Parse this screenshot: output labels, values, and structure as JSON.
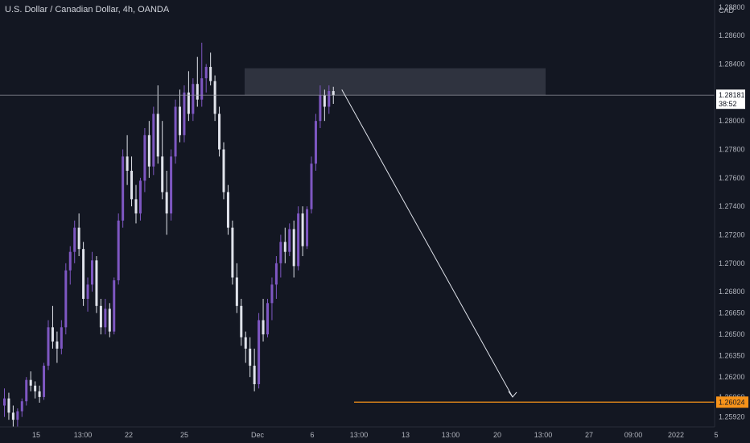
{
  "header": {
    "title": "U.S. Dollar / Canadian Dollar, 4h, OANDA"
  },
  "colors": {
    "background": "#131722",
    "up_candle": "#7e57c2",
    "down_candle": "#e0e3eb",
    "zone": "#3a3e4a",
    "crosshair": "#9598a1",
    "target_line": "#f7931a",
    "arrow": "#e0e3eb",
    "last_price_bg": "#ffffff",
    "last_price_text": "#131722",
    "target_price_bg": "#f7931a",
    "target_price_text": "#131722"
  },
  "chart_data": {
    "type": "candlestick",
    "symbol": "USDCAD",
    "interval": "4h",
    "source": "OANDA",
    "price_axis": {
      "currency": "CAD",
      "ticks": [
        "1.28800",
        "1.28600",
        "1.28400",
        "1.28000",
        "1.27800",
        "1.27600",
        "1.27400",
        "1.27200",
        "1.27000",
        "1.26800",
        "1.26650",
        "1.26500",
        "1.26350",
        "1.26200",
        "1.26060",
        "1.25920"
      ],
      "ylim": [
        1.2585,
        1.2885
      ]
    },
    "time_axis": {
      "ticks": [
        "15",
        "13:00",
        "22",
        "25",
        "Dec",
        "6",
        "13:00",
        "13",
        "13:00",
        "20",
        "13:00",
        "27",
        "09:00",
        "2022",
        "5"
      ]
    },
    "last_price": {
      "value": "1.28181",
      "countdown": "38:52"
    },
    "target_price": {
      "value": "1.26024"
    },
    "resistance_zone": {
      "top": 1.2837,
      "bottom": 1.2818
    },
    "candles": [
      [
        1.26,
        1.2612,
        1.2592,
        1.2605
      ],
      [
        1.2605,
        1.2609,
        1.259,
        1.2595
      ],
      [
        1.2595,
        1.26,
        1.2585,
        1.259
      ],
      [
        1.259,
        1.2598,
        1.2585,
        1.2596
      ],
      [
        1.2596,
        1.2605,
        1.2592,
        1.2603
      ],
      [
        1.2603,
        1.262,
        1.26,
        1.2618
      ],
      [
        1.2618,
        1.2624,
        1.261,
        1.2614
      ],
      [
        1.2614,
        1.2617,
        1.2605,
        1.261
      ],
      [
        1.261,
        1.2614,
        1.2602,
        1.2606
      ],
      [
        1.2606,
        1.263,
        1.2604,
        1.2628
      ],
      [
        1.2628,
        1.266,
        1.2625,
        1.2655
      ],
      [
        1.2655,
        1.267,
        1.264,
        1.2645
      ],
      [
        1.2645,
        1.2652,
        1.263,
        1.264
      ],
      [
        1.264,
        1.266,
        1.2636,
        1.2655
      ],
      [
        1.2655,
        1.27,
        1.265,
        1.2695
      ],
      [
        1.2695,
        1.2712,
        1.2685,
        1.2708
      ],
      [
        1.2708,
        1.273,
        1.27,
        1.2725
      ],
      [
        1.2725,
        1.2735,
        1.2705,
        1.271
      ],
      [
        1.271,
        1.2715,
        1.267,
        1.2675
      ],
      [
        1.2675,
        1.269,
        1.2666,
        1.2685
      ],
      [
        1.2685,
        1.2708,
        1.268,
        1.2702
      ],
      [
        1.2702,
        1.2705,
        1.2665,
        1.267
      ],
      [
        1.267,
        1.2675,
        1.265,
        1.2655
      ],
      [
        1.2655,
        1.2675,
        1.265,
        1.2668
      ],
      [
        1.2668,
        1.2672,
        1.2648,
        1.2652
      ],
      [
        1.2652,
        1.269,
        1.265,
        1.2688
      ],
      [
        1.2688,
        1.2735,
        1.2685,
        1.273
      ],
      [
        1.273,
        1.278,
        1.2725,
        1.2775
      ],
      [
        1.2775,
        1.279,
        1.2755,
        1.2765
      ],
      [
        1.2765,
        1.2775,
        1.274,
        1.2745
      ],
      [
        1.2745,
        1.2755,
        1.2728,
        1.2735
      ],
      [
        1.2735,
        1.276,
        1.273,
        1.2758
      ],
      [
        1.2758,
        1.2795,
        1.275,
        1.279
      ],
      [
        1.279,
        1.28,
        1.276,
        1.2768
      ],
      [
        1.2768,
        1.281,
        1.2762,
        1.2805
      ],
      [
        1.2805,
        1.2825,
        1.277,
        1.2775
      ],
      [
        1.2775,
        1.28,
        1.2745,
        1.275
      ],
      [
        1.275,
        1.2765,
        1.272,
        1.2735
      ],
      [
        1.2735,
        1.278,
        1.273,
        1.2775
      ],
      [
        1.2775,
        1.2815,
        1.277,
        1.281
      ],
      [
        1.281,
        1.2822,
        1.2785,
        1.279
      ],
      [
        1.279,
        1.2825,
        1.2785,
        1.282
      ],
      [
        1.282,
        1.2835,
        1.28,
        1.2805
      ],
      [
        1.2805,
        1.283,
        1.28,
        1.2826
      ],
      [
        1.2826,
        1.2845,
        1.281,
        1.2815
      ],
      [
        1.2815,
        1.2855,
        1.281,
        1.283
      ],
      [
        1.283,
        1.284,
        1.282,
        1.2838
      ],
      [
        1.2838,
        1.2848,
        1.2825,
        1.2828
      ],
      [
        1.2828,
        1.2832,
        1.28,
        1.2805
      ],
      [
        1.2805,
        1.281,
        1.2775,
        1.278
      ],
      [
        1.278,
        1.2785,
        1.2745,
        1.275
      ],
      [
        1.275,
        1.2755,
        1.272,
        1.2725
      ],
      [
        1.2725,
        1.273,
        1.2685,
        1.269
      ],
      [
        1.269,
        1.27,
        1.2665,
        1.267
      ],
      [
        1.267,
        1.2675,
        1.2642,
        1.2648
      ],
      [
        1.2648,
        1.2652,
        1.263,
        1.264
      ],
      [
        1.264,
        1.2648,
        1.262,
        1.2628
      ],
      [
        1.2628,
        1.264,
        1.261,
        1.2615
      ],
      [
        1.2615,
        1.2665,
        1.2612,
        1.266
      ],
      [
        1.266,
        1.2675,
        1.2645,
        1.265
      ],
      [
        1.265,
        1.2675,
        1.2648,
        1.2672
      ],
      [
        1.2672,
        1.269,
        1.266,
        1.2685
      ],
      [
        1.2685,
        1.2705,
        1.2675,
        1.27
      ],
      [
        1.27,
        1.272,
        1.269,
        1.2715
      ],
      [
        1.2715,
        1.2725,
        1.27,
        1.2708
      ],
      [
        1.2708,
        1.2728,
        1.2705,
        1.2724
      ],
      [
        1.2724,
        1.273,
        1.269,
        1.2698
      ],
      [
        1.2698,
        1.274,
        1.2695,
        1.2735
      ],
      [
        1.2735,
        1.274,
        1.2705,
        1.2712
      ],
      [
        1.2712,
        1.274,
        1.271,
        1.2738
      ],
      [
        1.2738,
        1.2775,
        1.2735,
        1.277
      ],
      [
        1.277,
        1.2805,
        1.2765,
        1.28
      ],
      [
        1.28,
        1.2825,
        1.2795,
        1.2818
      ],
      [
        1.2818,
        1.2822,
        1.28,
        1.281
      ],
      [
        1.281,
        1.2825,
        1.2805,
        1.2821
      ],
      [
        1.2821,
        1.2824,
        1.2812,
        1.2818
      ]
    ]
  }
}
